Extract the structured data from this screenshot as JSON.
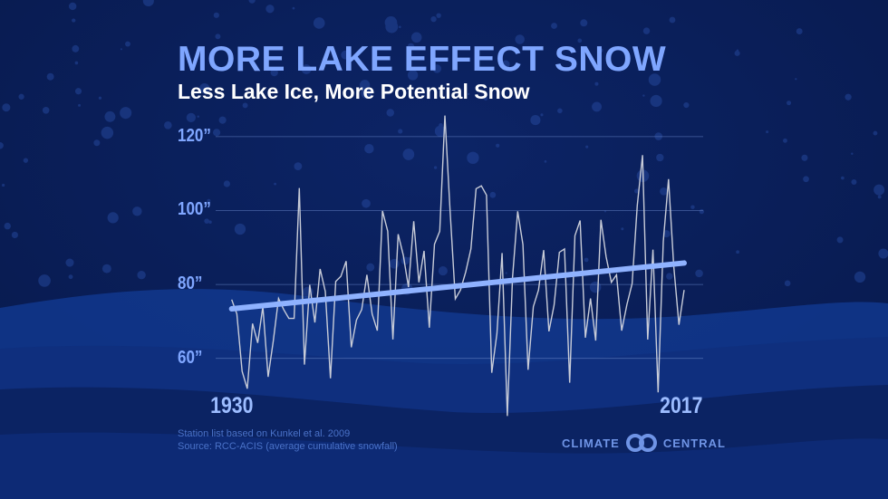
{
  "title": "MORE LAKE EFFECT SNOW",
  "subtitle": "Less Lake Ice, More Potential Snow",
  "footnotes": [
    "Station list based on Kunkel et al. 2009",
    "Source: RCC-ACIS (average cumulative snowfall)"
  ],
  "logo": {
    "left": "CLIMATE",
    "right": "CENTRAL"
  },
  "colors": {
    "background": "#0a1d58",
    "title": "#7fa6ff",
    "series": "#c8ccd8",
    "trend": "#8fb2ff"
  },
  "chart_data": {
    "type": "line",
    "title": "MORE LAKE EFFECT SNOW",
    "subtitle": "Less Lake Ice, More Potential Snow",
    "xlabel": "",
    "ylabel": "",
    "x_start": 1930,
    "x_end": 2017,
    "x_tick_labels": [
      "1930",
      "2017"
    ],
    "ylim": [
      44,
      127
    ],
    "y_ticks": [
      60,
      80,
      100,
      120
    ],
    "y_tick_labels": [
      "60”",
      "80”",
      "100”",
      "120”"
    ],
    "grid": true,
    "series": [
      {
        "values": [
          75.9,
          72,
          56.5,
          51.8,
          69.4,
          64.2,
          74,
          55,
          64.7,
          76.2,
          73.2,
          70.8,
          70.8,
          106.1,
          58.3,
          79.9,
          69.7,
          84.2,
          78.1,
          54.6,
          80.8,
          82.2,
          86.3,
          63,
          70.4,
          73.2,
          82.6,
          72,
          67.5,
          99.9,
          94.4,
          65.1,
          93.6,
          87.9,
          79.3,
          97.1,
          80.6,
          89.1,
          68.3,
          90.9,
          94.4,
          125.7,
          100,
          76.1,
          78.5,
          83.4,
          89.6,
          105.9,
          106.7,
          104.2,
          56.1,
          66.7,
          88.5,
          44.4,
          81.8,
          99.8,
          90.8,
          56.9,
          74,
          78.5,
          89.3,
          67.3,
          74.4,
          88.7,
          89.6,
          53.4,
          93.2,
          97.3,
          65.6,
          76.2,
          64.8,
          97.5,
          87.5,
          80.6,
          82.6,
          67.5,
          74.6,
          80.2,
          101.4,
          115,
          65.1,
          89.4,
          50.8,
          91.6,
          108.5,
          85.1,
          69.1,
          78.5
        ]
      }
    ],
    "trend": {
      "start": [
        1930,
        73.4
      ],
      "end": [
        2017,
        85.8
      ]
    }
  }
}
